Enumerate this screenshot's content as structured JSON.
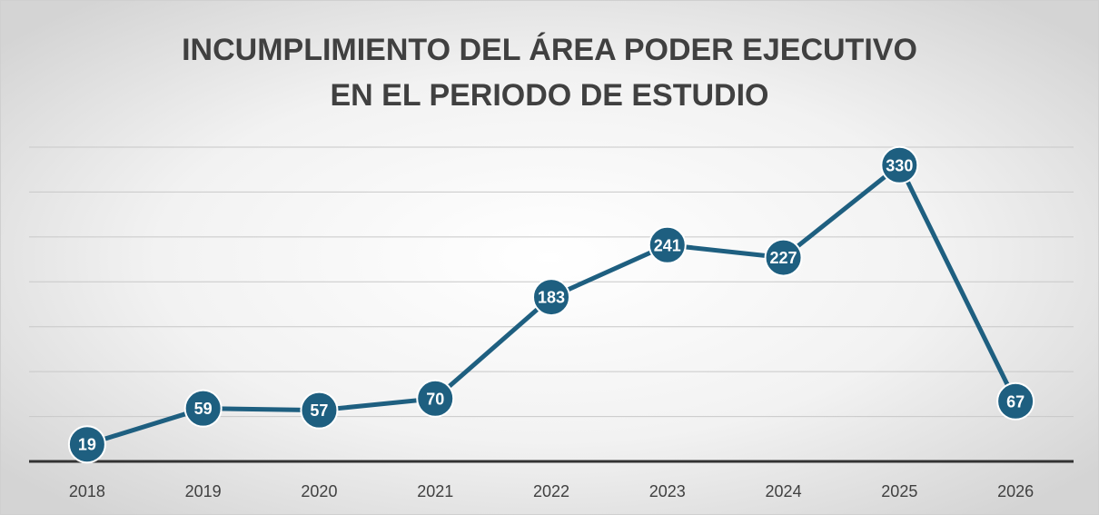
{
  "chart_data": {
    "type": "line",
    "title": [
      "INCUMPLIMIENTO DEL ÁREA PODER EJECUTIVO",
      "EN EL PERIODO DE ESTUDIO"
    ],
    "categories": [
      "2018",
      "2019",
      "2020",
      "2021",
      "2022",
      "2023",
      "2024",
      "2025",
      "2026"
    ],
    "series": [
      {
        "name": "Incumplimiento",
        "color": "#1e5f80",
        "values": [
          19,
          59,
          57,
          70,
          183,
          241,
          227,
          330,
          67
        ]
      }
    ],
    "ylim": [
      0,
      350
    ],
    "yticks": [
      0,
      50,
      100,
      150,
      200,
      250,
      300,
      350
    ],
    "grid": true
  }
}
